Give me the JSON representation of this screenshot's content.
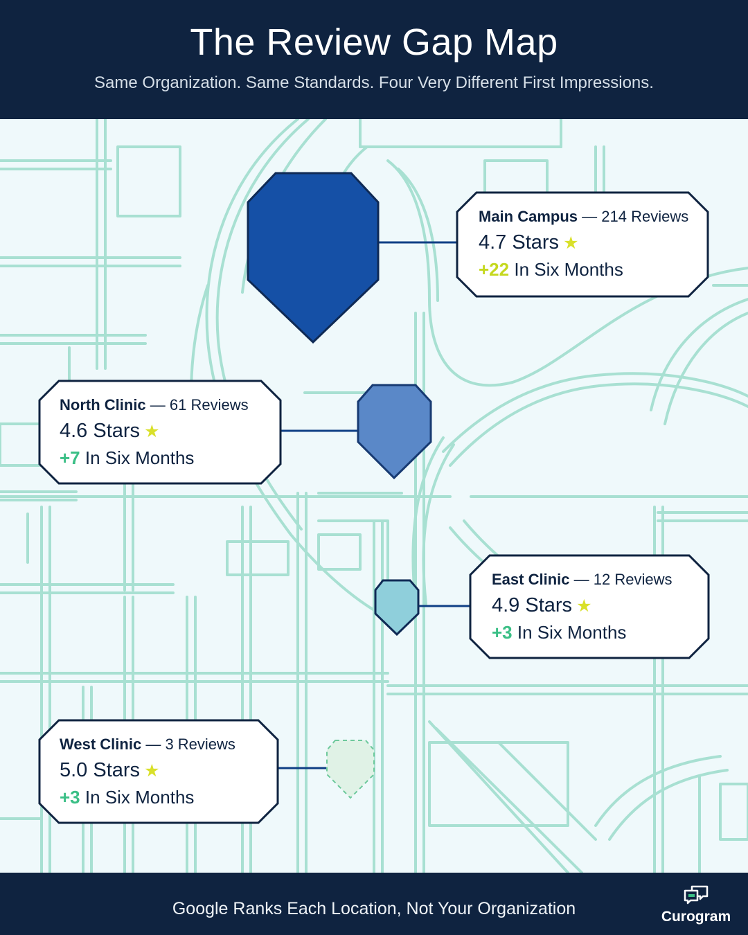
{
  "header": {
    "title": "The Review Gap Map",
    "subtitle": "Same Organization. Same Standards. Four Very Different First Impressions."
  },
  "locations": [
    {
      "name": "Main Campus",
      "separator": "—",
      "reviews": "214 Reviews",
      "stars": "4.7 Stars",
      "gain": "+22",
      "gain_label": "In Six Months",
      "pin_color": "#1550a6",
      "gain_color": "#c5d81f"
    },
    {
      "name": "North Clinic",
      "separator": "—",
      "reviews": "61 Reviews",
      "stars": "4.6 Stars",
      "gain": "+7",
      "gain_label": "In Six Months",
      "pin_color": "#5a88c8",
      "gain_color": "#3bbf86"
    },
    {
      "name": "East Clinic",
      "separator": "—",
      "reviews": "12 Reviews",
      "stars": "4.9 Stars",
      "gain": "+3",
      "gain_label": "In Six Months",
      "pin_color": "#8fcfdb",
      "gain_color": "#3bbf86"
    },
    {
      "name": "West Clinic",
      "separator": "—",
      "reviews": "3 Reviews",
      "stars": "5.0 Stars",
      "gain": "+3",
      "gain_label": "In Six Months",
      "pin_color": "#e0f2e6",
      "gain_color": "#3bbf86"
    }
  ],
  "star_glyph": "★",
  "footer": {
    "text": "Google Ranks Each Location, Not Your Organization",
    "brand": "Curogram"
  },
  "colors": {
    "navy": "#0f2340",
    "road": "#a8e0d2",
    "map_bg": "#eff9fb",
    "star": "#d9e02a"
  }
}
